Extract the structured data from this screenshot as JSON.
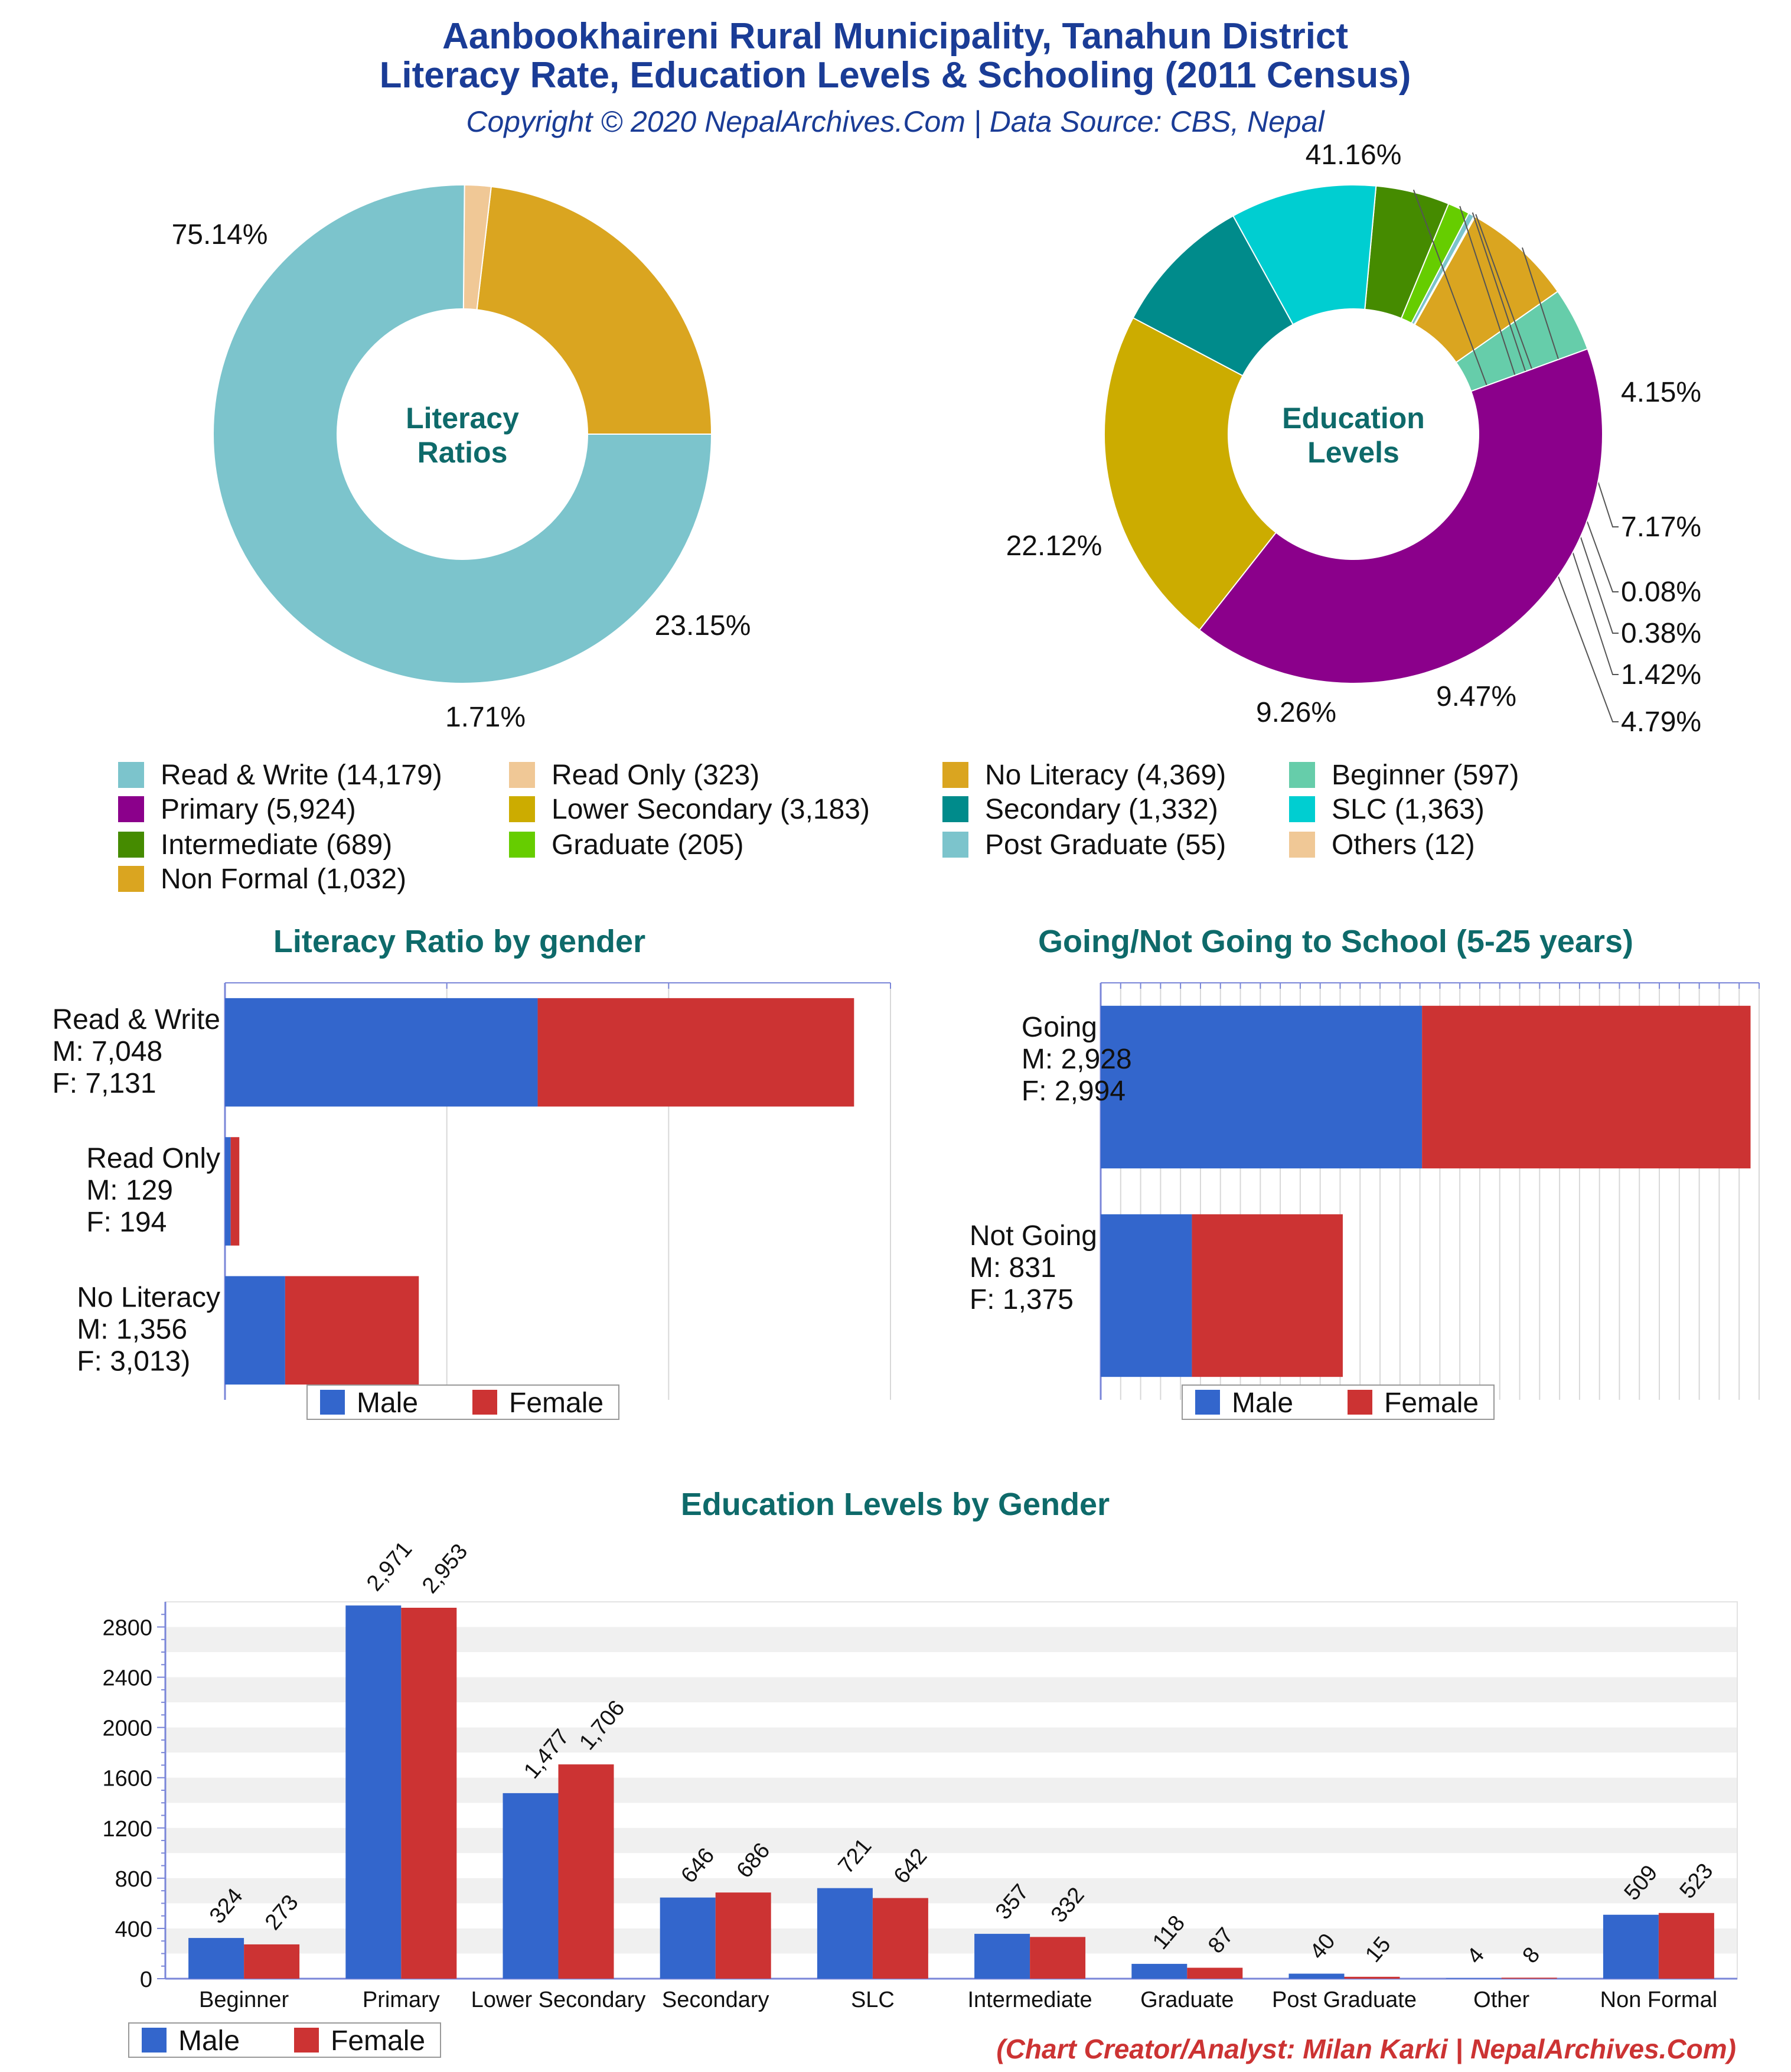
{
  "header": {
    "title_line1": "Aanbookhaireni Rural Municipality, Tanahun District",
    "title_line2": "Literacy Rate, Education Levels & Schooling (2011 Census)",
    "subtitle": "Copyright © 2020 NepalArchives.Com | Data Source: CBS, Nepal"
  },
  "colors": {
    "title": "#1a3c96",
    "subtitle": "#1a3c96",
    "section_title": "#0e6a6a",
    "male": "#3366cc",
    "female": "#cc3333",
    "credit": "#cc3333"
  },
  "legend": {
    "male_label": "Male",
    "female_label": "Female"
  },
  "credit": "(Chart Creator/Analyst: Milan Karki | NepalArchives.Com)",
  "combined_legend": [
    {
      "label": "Read & Write (14,179)",
      "color": "#7cc4cc"
    },
    {
      "label": "Read Only (323)",
      "color": "#f0c896"
    },
    {
      "label": "No Literacy (4,369)",
      "color": "#daa520"
    },
    {
      "label": "Beginner (597)",
      "color": "#66cdaa"
    },
    {
      "label": "Primary (5,924)",
      "color": "#8b008b"
    },
    {
      "label": "Lower Secondary (3,183)",
      "color": "#ccac00"
    },
    {
      "label": "Secondary (1,332)",
      "color": "#008b8b"
    },
    {
      "label": "SLC (1,363)",
      "color": "#00ced1"
    },
    {
      "label": "Intermediate (689)",
      "color": "#458b00"
    },
    {
      "label": "Graduate (205)",
      "color": "#66cd00"
    },
    {
      "label": "Post Graduate (55)",
      "color": "#7cc4cc"
    },
    {
      "label": "Others (12)",
      "color": "#f0c896"
    },
    {
      "label": "Non Formal (1,032)",
      "color": "#daa520"
    }
  ],
  "chart_data": [
    {
      "type": "pie",
      "center_label": [
        "Literacy",
        "Ratios"
      ],
      "slices": [
        {
          "name": "No Literacy",
          "value": 4369,
          "pct_label": "23.15%",
          "color": "#daa520"
        },
        {
          "name": "Read Only",
          "value": 323,
          "pct_label": "1.71%",
          "color": "#f0c896"
        },
        {
          "name": "Read & Write",
          "value": 14179,
          "pct_label": "75.14%",
          "color": "#7cc4cc"
        }
      ]
    },
    {
      "type": "pie",
      "center_label": [
        "Education",
        "Levels"
      ],
      "slices": [
        {
          "name": "Beginner",
          "value": 597,
          "pct_label": "4.15%",
          "color": "#66cdaa"
        },
        {
          "name": "Non Formal",
          "value": 1032,
          "pct_label": "7.17%",
          "color": "#daa520"
        },
        {
          "name": "Others",
          "value": 12,
          "pct_label": "0.08%",
          "color": "#f0c896"
        },
        {
          "name": "Post Graduate",
          "value": 55,
          "pct_label": "0.38%",
          "color": "#7cc4cc"
        },
        {
          "name": "Graduate",
          "value": 205,
          "pct_label": "1.42%",
          "color": "#66cd00"
        },
        {
          "name": "Intermediate",
          "value": 689,
          "pct_label": "4.79%",
          "color": "#458b00"
        },
        {
          "name": "SLC",
          "value": 1363,
          "pct_label": "9.47%",
          "color": "#00ced1"
        },
        {
          "name": "Secondary",
          "value": 1332,
          "pct_label": "9.26%",
          "color": "#008b8b"
        },
        {
          "name": "Lower Secondary",
          "value": 3183,
          "pct_label": "22.12%",
          "color": "#ccac00"
        },
        {
          "name": "Primary",
          "value": 5924,
          "pct_label": "41.16%",
          "color": "#8b008b"
        }
      ]
    },
    {
      "type": "bar",
      "title": "Literacy Ratio by gender",
      "orientation": "horizontal",
      "stacked": true,
      "categories": [
        {
          "label": "Read & Write",
          "male_label": "M: 7,048",
          "female_label": "F: 7,131"
        },
        {
          "label": "Read Only",
          "male_label": "M: 129",
          "female_label": "F: 194"
        },
        {
          "label": "No Literacy",
          "male_label": "M: 1,356",
          "female_label": "F: 3,013)"
        }
      ],
      "series": [
        {
          "name": "Male",
          "values": [
            7048,
            129,
            1356
          ]
        },
        {
          "name": "Female",
          "values": [
            7131,
            194,
            3013
          ]
        }
      ],
      "xlim": [
        0,
        15000
      ]
    },
    {
      "type": "bar",
      "title": "Going/Not Going to School (5-25 years)",
      "orientation": "horizontal",
      "stacked": true,
      "categories": [
        {
          "label": "Going",
          "male_label": "M: 2,928",
          "female_label": "F: 2,994"
        },
        {
          "label": "Not Going",
          "male_label": "M: 831",
          "female_label": "F: 1,375"
        }
      ],
      "series": [
        {
          "name": "Male",
          "values": [
            2928,
            831
          ]
        },
        {
          "name": "Female",
          "values": [
            2994,
            1375
          ]
        }
      ],
      "xlim": [
        0,
        6000
      ]
    },
    {
      "type": "bar",
      "title": "Education Levels by Gender",
      "orientation": "vertical",
      "categories": [
        "Beginner",
        "Primary",
        "Lower Secondary",
        "Secondary",
        "SLC",
        "Intermediate",
        "Graduate",
        "Post Graduate",
        "Other",
        "Non Formal"
      ],
      "series": [
        {
          "name": "Male",
          "values": [
            324,
            2971,
            1477,
            646,
            721,
            357,
            118,
            40,
            4,
            509
          ],
          "labels": [
            "324",
            "2,971",
            "1,477",
            "646",
            "721",
            "357",
            "118",
            "40",
            "4",
            "509"
          ]
        },
        {
          "name": "Female",
          "values": [
            273,
            2953,
            1706,
            686,
            642,
            332,
            87,
            15,
            8,
            523
          ],
          "labels": [
            "273",
            "2,953",
            "1,706",
            "686",
            "642",
            "332",
            "87",
            "15",
            "8",
            "523"
          ]
        }
      ],
      "ylim": [
        0,
        3000
      ],
      "yticks": [
        0,
        400,
        800,
        1200,
        1600,
        2000,
        2400,
        2800
      ]
    }
  ]
}
